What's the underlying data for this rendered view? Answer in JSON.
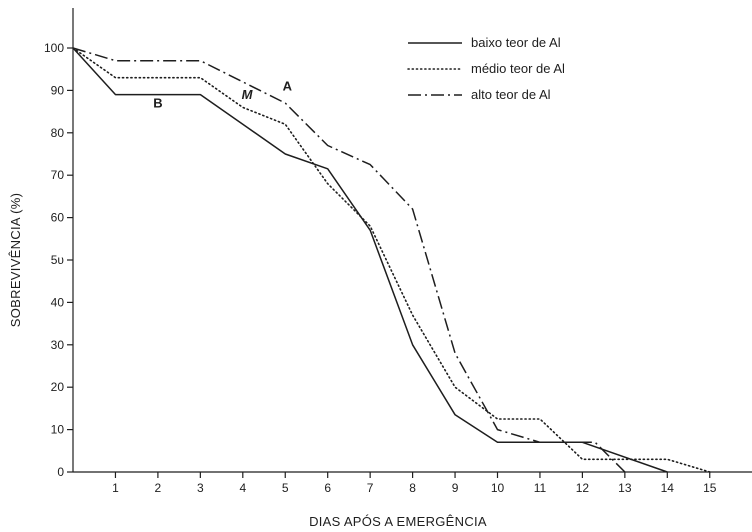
{
  "chart_data": {
    "type": "line",
    "title": "",
    "xlabel": "DIAS APÓS A EMERGÊNCIA",
    "ylabel": "SOBREVIVÊNCIA (%)",
    "xlim": [
      0,
      16
    ],
    "ylim": [
      0,
      100
    ],
    "x_ticks": [
      1,
      2,
      3,
      4,
      5,
      6,
      7,
      8,
      9,
      10,
      11,
      12,
      13,
      14,
      15
    ],
    "y_ticks": [
      0,
      10,
      20,
      30,
      40,
      50,
      60,
      70,
      80,
      90,
      100
    ],
    "y_tick_labels": [
      "0",
      "10",
      "20",
      "30",
      "40",
      "5υ",
      "60",
      "70",
      "80",
      "90",
      "100"
    ],
    "grid": false,
    "legend_position": "top-right",
    "colors": {
      "ink": "#1e1e1e",
      "background": "#ffffff"
    },
    "series": [
      {
        "name": "baixo teor de Al",
        "letter": "B",
        "line_style": "solid",
        "points": [
          [
            0,
            100
          ],
          [
            1,
            89
          ],
          [
            3,
            89
          ],
          [
            5,
            75
          ],
          [
            6,
            71.5
          ],
          [
            7,
            57
          ],
          [
            8,
            30
          ],
          [
            9,
            13.5
          ],
          [
            10,
            7
          ],
          [
            12,
            7
          ],
          [
            14,
            0
          ]
        ]
      },
      {
        "name": "médio teor de Al",
        "letter": "M",
        "line_style": "dotted",
        "points": [
          [
            0,
            100
          ],
          [
            1,
            93
          ],
          [
            3,
            93
          ],
          [
            4,
            86
          ],
          [
            5,
            82
          ],
          [
            6,
            68
          ],
          [
            7,
            58
          ],
          [
            8,
            37
          ],
          [
            9,
            20
          ],
          [
            10,
            12.5
          ],
          [
            11,
            12.5
          ],
          [
            12,
            3
          ],
          [
            14,
            3
          ],
          [
            15,
            0
          ]
        ]
      },
      {
        "name": "alto teor de Al",
        "letter": "A",
        "line_style": "dash-dot",
        "points": [
          [
            0,
            100
          ],
          [
            1,
            97
          ],
          [
            3,
            97
          ],
          [
            4,
            92
          ],
          [
            5,
            87
          ],
          [
            6,
            77
          ],
          [
            7,
            72.5
          ],
          [
            8,
            62
          ],
          [
            9,
            28
          ],
          [
            10,
            10
          ],
          [
            11,
            7
          ],
          [
            12.3,
            7
          ],
          [
            13,
            0
          ]
        ]
      }
    ],
    "annotations": [
      {
        "text": "B",
        "x": 2,
        "y": 86
      },
      {
        "text": "M",
        "x": 4.1,
        "y": 88
      },
      {
        "text": "A",
        "x": 5.05,
        "y": 90
      }
    ]
  }
}
